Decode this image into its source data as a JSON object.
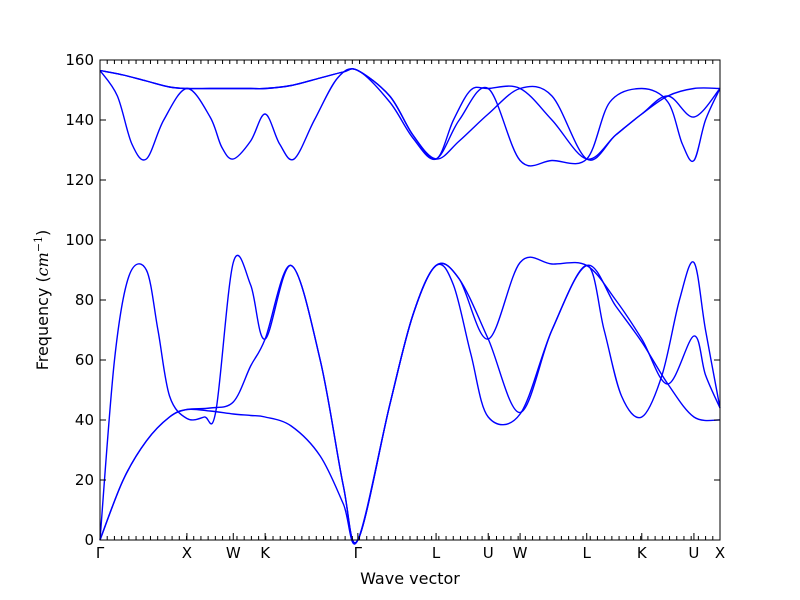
{
  "chart_data": {
    "type": "line",
    "title": "",
    "xlabel": "Wave vector",
    "ylabel": {
      "prefix": "Frequency (",
      "math": "cm",
      "superscript": "−1",
      "suffix": ")"
    },
    "xlim": [
      0,
      10.7
    ],
    "ylim": [
      0,
      160
    ],
    "yticks": [
      0,
      20,
      40,
      60,
      80,
      100,
      120,
      140,
      160
    ],
    "minor_x_ticks_per_unit": 8,
    "grid": false,
    "legend": "none",
    "line_color": "#0000ff",
    "high_symmetry_points": [
      {
        "label": "Γ",
        "x": 0
      },
      {
        "label": "X",
        "x": 1.5
      },
      {
        "label": "W",
        "x": 2.3
      },
      {
        "label": "K",
        "x": 2.85
      },
      {
        "label": "Γ",
        "x": 4.45
      },
      {
        "label": "L",
        "x": 5.8
      },
      {
        "label": "U",
        "x": 6.7
      },
      {
        "label": "W",
        "x": 7.25
      },
      {
        "label": "L",
        "x": 8.4
      },
      {
        "label": "K",
        "x": 9.35
      },
      {
        "label": "U",
        "x": 10.25
      },
      {
        "label": "X",
        "x": 10.7
      }
    ],
    "series": [
      {
        "x": [
          0,
          0.4,
          0.8,
          1.2,
          1.5,
          1.9,
          2.3,
          2.6,
          2.85,
          3.3,
          3.8,
          4.2,
          4.45,
          5.0,
          5.4,
          5.8,
          6.2,
          6.7,
          7.25,
          7.8,
          8.4,
          8.9,
          9.35,
          9.8,
          10.25,
          10.7
        ],
        "values": [
          0,
          20,
          33,
          41,
          43.5,
          43,
          42,
          41.5,
          41,
          38,
          28,
          12,
          0,
          45,
          75,
          91.5,
          87,
          67,
          42.5,
          70,
          91.5,
          78,
          66,
          52,
          41,
          40
        ]
      },
      {
        "x": [
          0,
          0.25,
          0.5,
          0.8,
          1.0,
          1.2,
          1.5,
          1.8,
          2.0,
          2.3,
          2.6,
          2.85,
          3.3,
          3.8,
          4.2,
          4.45,
          5.0,
          5.4,
          5.8,
          6.1,
          6.4,
          6.7,
          7.25,
          7.8,
          8.4,
          8.7,
          9.0,
          9.35,
          9.7,
          10.0,
          10.25,
          10.45,
          10.7
        ],
        "values": [
          0,
          60,
          88,
          90,
          70,
          48,
          40.5,
          41,
          43,
          92.5,
          85,
          67,
          91.5,
          60,
          18,
          0,
          45,
          75,
          91.5,
          85,
          62,
          41,
          42,
          70,
          91.5,
          70,
          48,
          41,
          55,
          80,
          92.5,
          70,
          44
        ]
      },
      {
        "x": [
          0,
          0.4,
          0.8,
          1.2,
          1.5,
          1.9,
          2.3,
          2.6,
          2.85,
          3.3,
          3.8,
          4.2,
          4.45,
          5.0,
          5.4,
          5.8,
          6.2,
          6.7,
          7.25,
          7.8,
          8.4,
          8.9,
          9.35,
          9.8,
          10.25,
          10.45,
          10.7
        ],
        "values": [
          0,
          20,
          33,
          41,
          43.5,
          44,
          46,
          58,
          67,
          91.5,
          60,
          18,
          0,
          45,
          75,
          91.5,
          87,
          67,
          92.5,
          92,
          91.5,
          80,
          67,
          52,
          68,
          55,
          44
        ]
      },
      {
        "x": [
          0,
          0.4,
          0.8,
          1.2,
          1.5,
          1.9,
          2.3,
          2.6,
          2.85,
          3.3,
          3.8,
          4.2,
          4.45,
          5.0,
          5.4,
          5.8,
          6.2,
          6.7,
          7.25,
          7.8,
          8.4,
          8.9,
          9.35,
          9.8,
          10.25,
          10.7
        ],
        "values": [
          156.5,
          155,
          153,
          151,
          150.5,
          150.5,
          150.5,
          150.5,
          150.5,
          151.5,
          154,
          156,
          156.5,
          148,
          135,
          127,
          133,
          142,
          150.5,
          148,
          127,
          135,
          142,
          148,
          150.5,
          150.5
        ]
      },
      {
        "x": [
          0,
          0.3,
          0.55,
          0.8,
          1.1,
          1.5,
          1.9,
          2.1,
          2.3,
          2.6,
          2.85,
          3.1,
          3.35,
          3.7,
          4.1,
          4.45,
          5.0,
          5.4,
          5.8,
          6.2,
          6.7,
          7.25,
          7.8,
          8.4,
          8.8,
          9.35,
          9.8,
          10.05,
          10.25,
          10.45,
          10.7
        ],
        "values": [
          156.5,
          148,
          132,
          127,
          140,
          150.5,
          141,
          131,
          127,
          133,
          142,
          132,
          127,
          140,
          154,
          156.5,
          146,
          134,
          127,
          140,
          150.5,
          126.5,
          126.5,
          127,
          146,
          150.5,
          146,
          132,
          126.5,
          140,
          150.5
        ]
      },
      {
        "x": [
          0,
          0.4,
          0.8,
          1.2,
          1.5,
          1.9,
          2.3,
          2.6,
          2.85,
          3.3,
          3.8,
          4.2,
          4.45,
          5.0,
          5.4,
          5.8,
          6.1,
          6.4,
          6.7,
          7.25,
          7.8,
          8.4,
          8.9,
          9.35,
          9.8,
          10.25,
          10.7
        ],
        "values": [
          156.5,
          155,
          153,
          151,
          150.5,
          150.5,
          150.5,
          150.5,
          150.5,
          151.5,
          154,
          156,
          156.5,
          148,
          135,
          127,
          140,
          150,
          150.5,
          150.5,
          140,
          127,
          135,
          142,
          148,
          141,
          150.5
        ]
      }
    ]
  }
}
